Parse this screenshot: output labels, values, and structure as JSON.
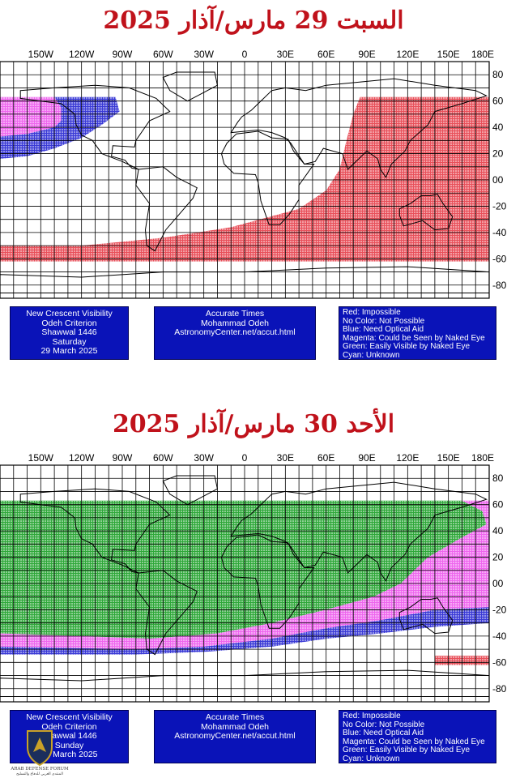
{
  "maps": [
    {
      "title": "السبت 29 مارس/آذار 2025",
      "info_left": [
        "New Crescent Visibility",
        "Odeh Criterion",
        "Shawwal 1446",
        "Saturday",
        "29 March 2025"
      ],
      "info_center": [
        "Accurate Times",
        "Mohammad Odeh",
        "AstronomyCenter.net/accut.html"
      ],
      "legend": [
        "Red: Impossible",
        "No Color: Not Possible",
        "Blue: Need Optical Aid",
        "Magenta: Could be Seen by Naked Eye",
        "Green: Easily Visible by Naked Eye",
        "Cyan: Unknown"
      ]
    },
    {
      "title": "الأحد 30 مارس/آذار 2025",
      "info_left": [
        "New Crescent Visibility",
        "Odeh Criterion",
        "Shawwal 1446",
        "Sunday",
        "30 March 2025"
      ],
      "info_center": [
        "Accurate Times",
        "Mohammad Odeh",
        "AstronomyCenter.net/accut.html"
      ],
      "legend": [
        "Red: Impossible",
        "No Color: Not Possible",
        "Blue: Need Optical Aid",
        "Magenta: Could be Seen by Naked Eye",
        "Green: Easily Visible by Naked Eye",
        "Cyan: Unknown"
      ]
    }
  ],
  "axes": {
    "longitude_labels": [
      "150W",
      "120W",
      "90W",
      "60W",
      "30W",
      "0",
      "30E",
      "60E",
      "90E",
      "120E",
      "150E",
      "180E"
    ],
    "latitude_labels": [
      "80",
      "60",
      "40",
      "20",
      "00",
      "-20",
      "-40",
      "-60",
      "-80"
    ]
  },
  "colors": {
    "title": "#c0121b",
    "impossible_red": "#e8505a",
    "optical_aid_blue": "#3a3ad6",
    "naked_eye_magenta": "#ee66ee",
    "easily_visible_green": "#2fa83a",
    "info_box_bg": "#0a13b8"
  },
  "logo": {
    "text": "ARAB DEFENSE FORUM",
    "subtext": "المنتدى العربي للدفاع والتسليح"
  }
}
